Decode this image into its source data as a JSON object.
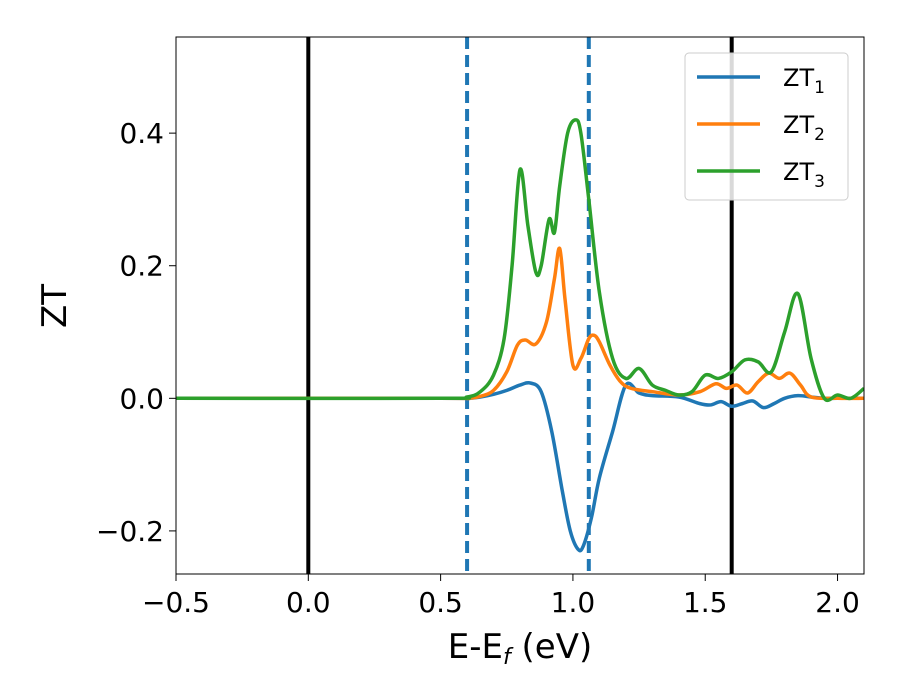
{
  "chart_data": {
    "type": "line",
    "title": "",
    "xlabel": {
      "main": "E-E",
      "sub": "f",
      "unit": " (eV)"
    },
    "ylabel": "ZT",
    "xlim": [
      -0.5,
      2.1
    ],
    "ylim": [
      -0.265,
      0.545
    ],
    "xticks": [
      -0.5,
      0.0,
      0.5,
      1.0,
      1.5,
      2.0
    ],
    "xtick_labels": [
      "−0.5",
      "0.0",
      "0.5",
      "1.0",
      "1.5",
      "2.0"
    ],
    "yticks": [
      -0.2,
      0.0,
      0.2,
      0.4
    ],
    "ytick_labels": [
      "−0.2",
      "0.0",
      "0.2",
      "0.4"
    ],
    "grid": false,
    "legend_position": "top-right",
    "vertical_lines": [
      {
        "x": 0.0,
        "style": "solid",
        "color": "#000000"
      },
      {
        "x": 0.6,
        "style": "dashed",
        "color": "#1f77b4"
      },
      {
        "x": 1.06,
        "style": "dashed",
        "color": "#1f77b4"
      },
      {
        "x": 1.6,
        "style": "solid",
        "color": "#000000"
      }
    ],
    "series": [
      {
        "name": "ZT",
        "subscript": "1",
        "color": "#1f77b4",
        "x": [
          -0.5,
          0.5,
          0.6,
          0.65,
          0.7,
          0.75,
          0.8,
          0.84,
          0.88,
          0.92,
          0.96,
          0.99,
          1.02,
          1.04,
          1.07,
          1.1,
          1.15,
          1.2,
          1.25,
          1.3,
          1.4,
          1.48,
          1.52,
          1.56,
          1.6,
          1.64,
          1.68,
          1.72,
          1.76,
          1.8,
          1.85,
          1.9,
          1.95,
          2.0,
          2.1
        ],
        "y": [
          0.0,
          0.0,
          0.0,
          0.002,
          0.006,
          0.012,
          0.02,
          0.023,
          0.01,
          -0.05,
          -0.14,
          -0.2,
          -0.228,
          -0.222,
          -0.18,
          -0.12,
          -0.05,
          0.02,
          0.008,
          0.004,
          0.002,
          -0.008,
          -0.01,
          -0.005,
          -0.012,
          -0.008,
          -0.004,
          -0.014,
          -0.008,
          0.0,
          0.004,
          0.002,
          0.0,
          0.0,
          0.0
        ]
      },
      {
        "name": "ZT",
        "subscript": "2",
        "color": "#ff7f0e",
        "x": [
          -0.5,
          0.5,
          0.6,
          0.65,
          0.7,
          0.75,
          0.79,
          0.82,
          0.86,
          0.9,
          0.93,
          0.95,
          0.97,
          1.0,
          1.03,
          1.06,
          1.08,
          1.1,
          1.14,
          1.18,
          1.22,
          1.3,
          1.4,
          1.48,
          1.54,
          1.58,
          1.62,
          1.66,
          1.7,
          1.74,
          1.78,
          1.82,
          1.86,
          1.9,
          2.0,
          2.1
        ],
        "y": [
          0.0,
          0.0,
          0.0,
          0.003,
          0.012,
          0.04,
          0.08,
          0.088,
          0.082,
          0.115,
          0.18,
          0.226,
          0.15,
          0.05,
          0.06,
          0.09,
          0.095,
          0.085,
          0.05,
          0.025,
          0.015,
          0.01,
          0.005,
          0.01,
          0.022,
          0.015,
          0.02,
          0.008,
          0.025,
          0.038,
          0.03,
          0.038,
          0.02,
          0.002,
          0.0,
          0.0
        ]
      },
      {
        "name": "ZT",
        "subscript": "3",
        "color": "#2ca02c",
        "x": [
          -0.5,
          0.5,
          0.6,
          0.65,
          0.7,
          0.74,
          0.77,
          0.8,
          0.83,
          0.86,
          0.88,
          0.91,
          0.93,
          0.95,
          0.98,
          1.01,
          1.03,
          1.06,
          1.1,
          1.15,
          1.2,
          1.25,
          1.3,
          1.35,
          1.4,
          1.45,
          1.5,
          1.55,
          1.6,
          1.65,
          1.7,
          1.75,
          1.8,
          1.85,
          1.9,
          1.95,
          2.0,
          2.05,
          2.1
        ],
        "y": [
          0.0,
          0.0,
          0.002,
          0.01,
          0.035,
          0.09,
          0.2,
          0.345,
          0.26,
          0.19,
          0.2,
          0.27,
          0.25,
          0.32,
          0.4,
          0.42,
          0.4,
          0.3,
          0.16,
          0.06,
          0.03,
          0.045,
          0.02,
          0.012,
          0.005,
          0.01,
          0.035,
          0.03,
          0.04,
          0.058,
          0.055,
          0.04,
          0.1,
          0.158,
          0.06,
          0.0,
          0.005,
          0.0,
          0.015
        ]
      }
    ]
  }
}
